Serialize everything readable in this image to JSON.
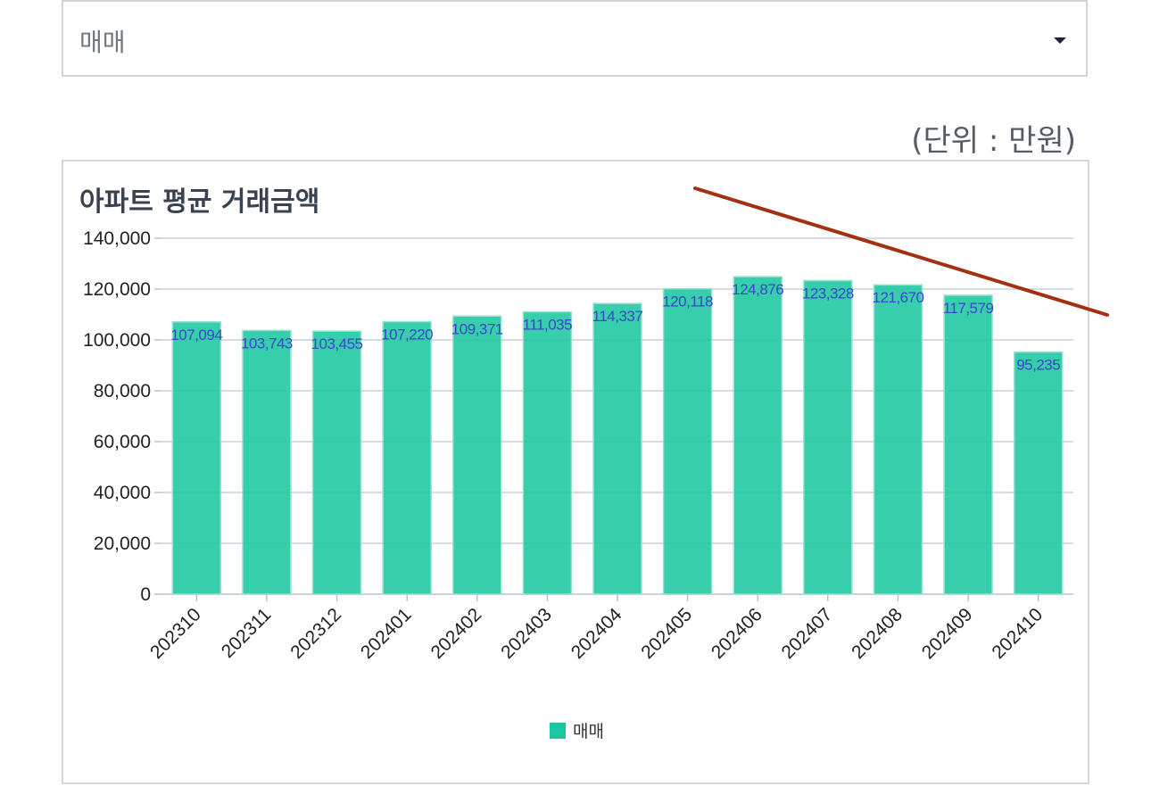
{
  "filter": {
    "selected": "매매",
    "icon": "caret-down-icon"
  },
  "unit_note": "(단위 : 만원)",
  "chart_data": {
    "type": "bar",
    "title": "아파트 평균 거래금액",
    "categories": [
      "202310",
      "202311",
      "202312",
      "202401",
      "202402",
      "202403",
      "202404",
      "202405",
      "202406",
      "202407",
      "202408",
      "202409",
      "202410"
    ],
    "series": [
      {
        "name": "매매",
        "values": [
          107094,
          103743,
          103455,
          107220,
          109371,
          111035,
          114337,
          120118,
          124876,
          123328,
          121670,
          117579,
          95235
        ],
        "color": "#1bc7a0"
      }
    ],
    "data_labels": [
      "107,094",
      "103,743",
      "103,455",
      "107,220",
      "109,371",
      "111,035",
      "114,337",
      "120,118",
      "124,876",
      "123,328",
      "121,670",
      "117,579",
      "95,235"
    ],
    "y_ticks": [
      "0",
      "20,000",
      "40,000",
      "60,000",
      "80,000",
      "100,000",
      "120,000",
      "140,000"
    ],
    "ylim": [
      0,
      140000
    ],
    "grid": true,
    "legend": "bottom-center",
    "annotation_line_color": "#a33012",
    "label_color": "#3b46c9"
  }
}
